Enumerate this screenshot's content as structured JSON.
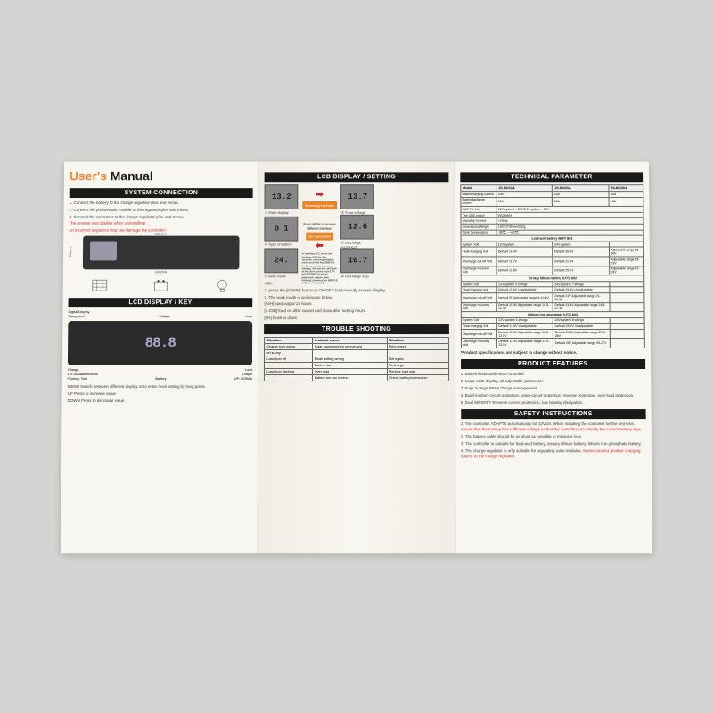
{
  "title": {
    "users": "User's",
    "users_color": "#e8852a",
    "manual": " Manual",
    "manual_color": "#1a1a1a"
  },
  "headers": {
    "system_connection": "SYSTEM CONNECTION",
    "lcd_display_key": "LCD DISPLAY / KEY",
    "lcd_display_setting": "LCD DISPLAY / SETTING",
    "trouble_shooting": "TROUBLE SHOOTING",
    "technical_parameter": "TECHNICAL PARAMETER",
    "product_features": "PRODUCT FEATURES",
    "safety_instructions": "SAFETY INSTRUCTIONS"
  },
  "system_connection": {
    "step1": "1. Connect the battery to the charge regulator-plus and minus.",
    "step2": "2. Connect the photovoltaic module to the regulator-plus and minus.",
    "step3": "3. Connect the consumer to the charge regulator-plus and minus.",
    "warn1": "The reverse step applies when uninstalling!",
    "warn2": "An incorrect sequence step can damage the controller!",
    "dim_w1": "133mm",
    "dim_w2": "124mm",
    "dim_h1": "70mm",
    "dim_h2": "58mm"
  },
  "lcd_key": {
    "digital_display": "Digital Display",
    "voltage": "Voltage",
    "hour": "Hour",
    "solarpanel": "Solarpanel",
    "charge": "Charge",
    "load": "Load",
    "output": "Output",
    "on_aqualation": "On: Aqualation/buck",
    "flicking": "Flicking: Toat",
    "battery": "Battery",
    "up_down": "UP:   DOWN/",
    "on_off": "ON/OFF",
    "segment_display": "88.8",
    "menu_desc": "MENU   Switch between different display or to enter / exit setting by long press.",
    "up_desc": "UP        Press to increase value",
    "down_desc": "DOWN  Press to decrease value"
  },
  "lcd_setting": {
    "displays": {
      "d1": "13.2",
      "d1_cap": "① Main display",
      "d2": "13.7",
      "d2_cap": "② Float voltage",
      "d3": "12.6",
      "d3_cap": "③ Discharge reconnect",
      "d4": "10.7",
      "d4_cap": "④ Discharge stop",
      "d5": "24.",
      "d5_cap": "⑤ work mode",
      "d6": "b  1",
      "d6_cap": "⑥ Type of battery"
    },
    "browsing": "Browsing interface",
    "press_menu": "Press MENU to browse different interface",
    "set_param": "Set parameter",
    "instr": "In interface 2-5, press and hold key [UP] for five seconds, restoring defaults, press and hold key [MENU] for five seconds, into mode settings, the number will flash at this time, press keys [UP] and [DOWN] to adjust parameter values, after finishing pressing key [MENU] to fix to exit setting.",
    "attn_title": "Attn:",
    "attn1": "1. press the [DOMN] button to ON/OFF load manully at main display.",
    "attn2": "2. The work mode is working as below:",
    "mode_24h": "[24H]    load output 24 hours",
    "mode_1_23h": "[1-23H]  load on after sunset and close after setting hours.",
    "mode_0h": "[0H]       Dusk to dawn"
  },
  "trouble": {
    "cols": [
      "Situation",
      "Probable cause",
      "Situation"
    ],
    "rows": [
      [
        "Charge icon not on",
        "Solar panel opened or reversed",
        "Reconnect"
      ],
      [
        "on sunny",
        "",
        ""
      ],
      [
        "Load icon off",
        "Mode setting wrong",
        "Set again"
      ],
      [
        "",
        "Battery low",
        "Recharge"
      ],
      [
        "Load icon flashing",
        "Over load",
        "Reduce load watt"
      ],
      [
        "",
        "Battery too low reverse",
        "Check battery/connection"
      ]
    ]
  },
  "tech": {
    "cols": [
      "Model",
      "JS-B0/10A",
      "JS-B0/20A",
      "JS-B0/30A"
    ],
    "rows": [
      [
        "Rated charging current",
        "10A",
        "20A",
        "30A"
      ],
      [
        "Rated discharge current",
        "10A",
        "10A",
        "10A"
      ],
      [
        "MAX PV Volt",
        "12V system < 25V/24V system < 50V",
        "",
        ""
      ],
      [
        "The USB output",
        "5V2AMAX",
        "",
        ""
      ],
      [
        "Stand-by Current",
        "<10ma",
        "",
        ""
      ],
      [
        "Dimensions/Weight",
        "133*70*35mm/132g",
        "",
        ""
      ],
      [
        "Work Temperature",
        "-35℃ ~ +60℃",
        "",
        ""
      ],
      [
        "",
        "Lead-acid battery /BAT/ B01",
        "",
        ""
      ],
      [
        "System Volt",
        "12V system",
        "24V system",
        ""
      ],
      [
        "Float charging Volt",
        "Default 14.4V",
        "Default 28.8V",
        "Adjustable range 26-30V"
      ],
      [
        "Discharge cut-off Volt",
        "Default 10.7V",
        "Default 21.4V",
        "Adjustable range 18-22V"
      ],
      [
        "Discharge recovery Volt",
        "Default 12.6V",
        "Default 25.2V",
        "Adjustable range 22-26V"
      ],
      [
        "",
        "Ternary lithium battery /LIT1/ b02",
        "",
        ""
      ],
      [
        "System Volt",
        "12V system 3 strings",
        "24V system 7 strings",
        ""
      ],
      [
        "Float charging Volt",
        "Default 12.6V  Unadjustable",
        "Default 29.4V  Unadjustable",
        ""
      ],
      [
        "Discharge cut-off Volt",
        "Default 9V  Adjustable range 9-10.5V",
        "Default 21V  Adjustable range 21-24.5V",
        ""
      ],
      [
        "Discharge recovery Volt",
        "Default 10.5V  Adjustable range 10.5-11.7V",
        "Default 24.5V  Adjustable range 24.5-27.3V",
        ""
      ],
      [
        "",
        "Lithium iron phosphate /LIT2/ b03",
        "",
        ""
      ],
      [
        "System Volt",
        "12V system 4 strings",
        "24V system 8 strings",
        ""
      ],
      [
        "Float charging Volt",
        "Default 14.6V  Unadjustable",
        "Default 29.2V  Unadjustable",
        ""
      ],
      [
        "Discharge cut-off Volt",
        "Default 11.8V  Adjustable range 11.8-12.5V",
        "Default 23.6V  Adjustable range 23.6-25V",
        ""
      ],
      [
        "Discharge recovery Volt",
        "Default 12.5V  Adjustable range 12.5-13.5V",
        "Default 25V  Adjustable range 25-27V",
        ""
      ]
    ],
    "note": "*Product specifications are subject to change without notice."
  },
  "features": {
    "f1": "1. Build-in industrial micro controller.",
    "f2": "2. Large LCD display, all adjustable parameter.",
    "f3": "3. Fully 3-stage PWM charge management.",
    "f4": "4. Build-in short-circuit protection, open-circuit protection, reverse protection, over-load protection.",
    "f5": "5. Dual MOSFET Reverse current protection, low heating dissipation."
  },
  "safety": {
    "s1a": "1. The controller ADAPTS automatically for 12V/24. When installing the controller for the first time, ",
    "s1b": "ensure that the battery has sufficient voltage so that the controller can identify the correct battery type.",
    "s2": "2. The battery cable should be as short as possible to minimize loss.",
    "s3": "3. The controller is suitable for lead-acid battery, ternary lithium battery, lithium iron phosphate battery.",
    "s4a": "4. The charge regulator is only suitable for regulating solar modules. ",
    "s4b": "Never connect another charging source to the charge regulator."
  }
}
